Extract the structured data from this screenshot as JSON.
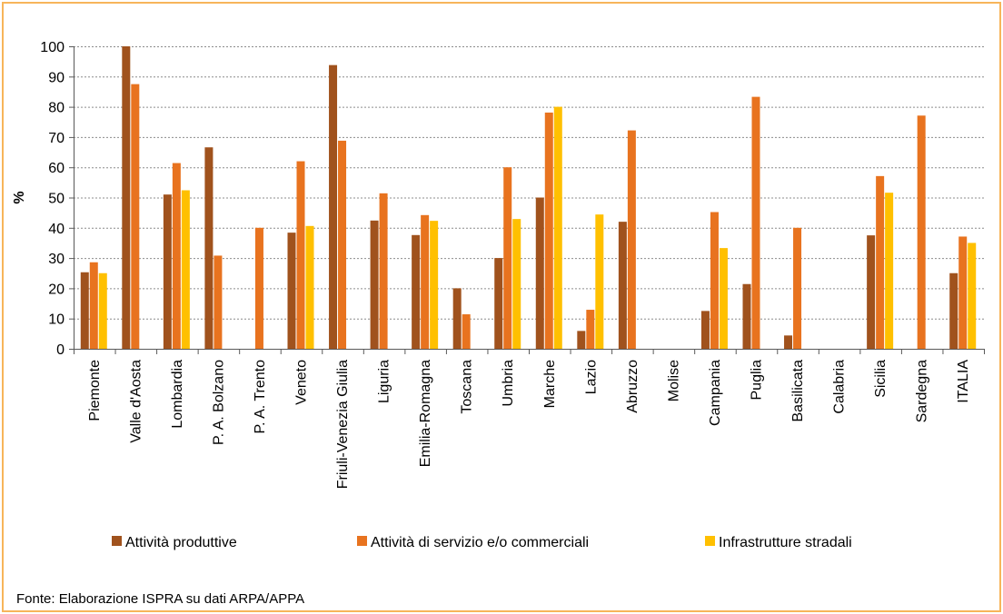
{
  "source_note": "Fonte: Elaborazione ISPRA su dati ARPA/APPA",
  "colors": {
    "border": "#F7B55A",
    "series": [
      "#A0521D",
      "#E8731F",
      "#FFC000"
    ],
    "gridline": "#8C8C8C"
  },
  "chart_data": {
    "type": "bar",
    "title": "",
    "xlabel": "",
    "ylabel": "%",
    "ylim": [
      0,
      100
    ],
    "yticks": [
      0,
      10,
      20,
      30,
      40,
      50,
      60,
      70,
      80,
      90,
      100
    ],
    "grid": "horizontal dotted",
    "legend_position": "bottom",
    "categories": [
      "Piemonte",
      "Valle d'Aosta",
      "Lombardia",
      "P. A. Bolzano",
      "P. A. Trento",
      "Veneto",
      "Friuli-Venezia Giulia",
      "Liguria",
      "Emilia-Romagna",
      "Toscana",
      "Umbria",
      "Marche",
      "Lazio",
      "Abruzzo",
      "Molise",
      "Campania",
      "Puglia",
      "Basilicata",
      "Calabria",
      "Sicilia",
      "Sardegna",
      "ITALIA"
    ],
    "series": [
      {
        "name": "Attività produttive",
        "values": [
          25.3,
          100,
          51,
          66.6,
          0,
          38.4,
          93.8,
          42.4,
          37.6,
          20,
          30,
          50,
          5.9,
          42,
          0,
          12.5,
          21.4,
          4.4,
          0,
          37.5,
          0,
          25
        ]
      },
      {
        "name": "Attività di servizio e/o commerciali",
        "values": [
          28.6,
          87.5,
          61.4,
          30.8,
          40,
          62,
          68.8,
          51.4,
          44.2,
          11.4,
          60,
          78.1,
          12.9,
          72.2,
          0,
          45.2,
          83.3,
          40,
          0,
          57.1,
          77.1,
          37.1
        ]
      },
      {
        "name": "Infrastrutture stradali",
        "values": [
          25,
          0,
          52.4,
          0,
          0,
          40.6,
          0,
          0,
          42.3,
          0,
          42.9,
          80,
          44.4,
          0,
          0,
          33.3,
          0,
          0,
          0,
          51.6,
          0,
          35
        ]
      }
    ]
  }
}
